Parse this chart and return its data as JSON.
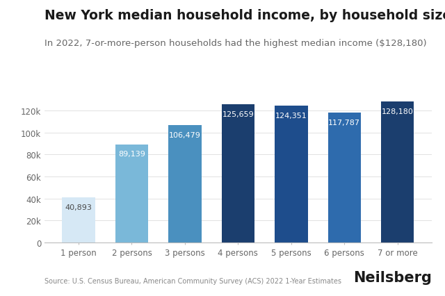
{
  "title": "New York median household income, by household size",
  "subtitle": "In 2022, 7-or-more-person households had the highest median income ($128,180)",
  "categories": [
    "1 person",
    "2 persons",
    "3 persons",
    "4 persons",
    "5 persons",
    "6 persons",
    "7 or more"
  ],
  "values": [
    40893,
    89139,
    106479,
    125659,
    124351,
    117787,
    128180
  ],
  "bar_colors": [
    "#d6e8f5",
    "#7ab8d9",
    "#4a90bf",
    "#1b3e6e",
    "#1e4d8c",
    "#2e6bad",
    "#1b3e6e"
  ],
  "label_colors": [
    "#4a4a4a",
    "#ffffff",
    "#ffffff",
    "#ffffff",
    "#ffffff",
    "#ffffff",
    "#ffffff"
  ],
  "ylim": [
    0,
    140000
  ],
  "yticks": [
    0,
    20000,
    40000,
    60000,
    80000,
    100000,
    120000
  ],
  "ytick_labels": [
    "0",
    "20k",
    "40k",
    "60k",
    "80k",
    "100k",
    "120k"
  ],
  "source": "Source: U.S. Census Bureau, American Community Survey (ACS) 2022 1-Year Estimates",
  "branding": "Neilsberg",
  "background_color": "#ffffff",
  "plot_background_color": "#ffffff",
  "title_fontsize": 13.5,
  "subtitle_fontsize": 9.5,
  "bar_label_fontsize": 8,
  "axis_label_fontsize": 8.5,
  "source_fontsize": 7,
  "branding_fontsize": 15
}
